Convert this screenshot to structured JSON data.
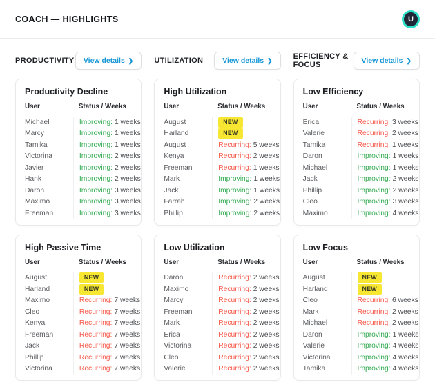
{
  "header": {
    "title": "COACH — HIGHLIGHTS",
    "avatar_initial": "U"
  },
  "labels": {
    "view_details": "View details",
    "chevron": "❯",
    "new_badge": "NEW"
  },
  "colors": {
    "accent_blue": "#1697d6",
    "improving_green": "#34ab53",
    "recurring_red": "#f75849",
    "badge_yellow": "#f7e733",
    "avatar_ring_teal": "#2ee0c9",
    "avatar_bg": "#202736"
  },
  "columns": [
    {
      "label": "PRODUCTIVITY",
      "cards": [
        {
          "title": "Productivity Decline",
          "headers": {
            "user": "User",
            "status": "Status / Weeks"
          },
          "rows": [
            {
              "user": "Michael",
              "status": "Improving",
              "weeks": "1 weeks"
            },
            {
              "user": "Marcy",
              "status": "Improving",
              "weeks": "1 weeks"
            },
            {
              "user": "Tamika",
              "status": "Improving",
              "weeks": "1 weeks"
            },
            {
              "user": "Victorina",
              "status": "Improving",
              "weeks": "2 weeks"
            },
            {
              "user": "Javier",
              "status": "Improving",
              "weeks": "2 weeks"
            },
            {
              "user": "Hank",
              "status": "Improving",
              "weeks": "2 weeks"
            },
            {
              "user": "Daron",
              "status": "Improving",
              "weeks": "3 weeks"
            },
            {
              "user": "Maximo",
              "status": "Improving",
              "weeks": "3 weeks"
            },
            {
              "user": "Freeman",
              "status": "Improving",
              "weeks": "3 weeks"
            }
          ]
        },
        {
          "title": "High Passive Time",
          "headers": {
            "user": "User",
            "status": "Status / Weeks"
          },
          "rows": [
            {
              "user": "August",
              "status": "NEW",
              "weeks": null
            },
            {
              "user": "Harland",
              "status": "NEW",
              "weeks": null
            },
            {
              "user": "Maximo",
              "status": "Recurring",
              "weeks": "7 weeks"
            },
            {
              "user": "Cleo",
              "status": "Recurring",
              "weeks": "7 weeks"
            },
            {
              "user": "Kenya",
              "status": "Recurring",
              "weeks": "7 weeks"
            },
            {
              "user": "Freeman",
              "status": "Recurring",
              "weeks": "7 weeks"
            },
            {
              "user": "Jack",
              "status": "Recurring",
              "weeks": "7 weeks"
            },
            {
              "user": "Phillip",
              "status": "Recurring",
              "weeks": "7 weeks"
            },
            {
              "user": "Victorina",
              "status": "Recurring",
              "weeks": "7 weeks"
            }
          ]
        }
      ]
    },
    {
      "label": "UTILIZATION",
      "cards": [
        {
          "title": "High Utilization",
          "headers": {
            "user": "User",
            "status": "Status / Weeks"
          },
          "rows": [
            {
              "user": "August",
              "status": "NEW",
              "weeks": null
            },
            {
              "user": "Harland",
              "status": "NEW",
              "weeks": null
            },
            {
              "user": "August",
              "status": "Recurring",
              "weeks": "5 weeks"
            },
            {
              "user": "Kenya",
              "status": "Recurring",
              "weeks": "2 weeks"
            },
            {
              "user": "Freeman",
              "status": "Recurring",
              "weeks": "1 weeks"
            },
            {
              "user": "Mark",
              "status": "Improving",
              "weeks": "1 weeks"
            },
            {
              "user": "Jack",
              "status": "Improving",
              "weeks": "1 weeks"
            },
            {
              "user": "Farrah",
              "status": "Improving",
              "weeks": "2 weeks"
            },
            {
              "user": "Phillip",
              "status": "Improving",
              "weeks": "2 weeks"
            }
          ]
        },
        {
          "title": "Low Utilization",
          "headers": {
            "user": "User",
            "status": "Status / Weeks"
          },
          "rows": [
            {
              "user": "Daron",
              "status": "Recurring",
              "weeks": "2 weeks"
            },
            {
              "user": "Maximo",
              "status": "Recurring",
              "weeks": "2 weeks"
            },
            {
              "user": "Marcy",
              "status": "Recurring",
              "weeks": "2 weeks"
            },
            {
              "user": "Freeman",
              "status": "Recurring",
              "weeks": "2 weeks"
            },
            {
              "user": "Mark",
              "status": "Recurring",
              "weeks": "2 weeks"
            },
            {
              "user": "Erica",
              "status": "Recurring",
              "weeks": "2 weeks"
            },
            {
              "user": "Victorina",
              "status": "Recurring",
              "weeks": "2 weeks"
            },
            {
              "user": "Cleo",
              "status": "Recurring",
              "weeks": "2 weeks"
            },
            {
              "user": "Valerie",
              "status": "Recurring",
              "weeks": "2 weeks"
            }
          ]
        }
      ]
    },
    {
      "label": "EFFICIENCY & FOCUS",
      "cards": [
        {
          "title": "Low Efficiency",
          "headers": {
            "user": "User",
            "status": "Status / Weeks"
          },
          "rows": [
            {
              "user": "Erica",
              "status": "Recurring",
              "weeks": "3 weeks"
            },
            {
              "user": "Valerie",
              "status": "Recurring",
              "weeks": "2 weeks"
            },
            {
              "user": "Tamika",
              "status": "Recurring",
              "weeks": "1 weeks"
            },
            {
              "user": "Daron",
              "status": "Improving",
              "weeks": "1 weeks"
            },
            {
              "user": "Michael",
              "status": "Improving",
              "weeks": "1 weeks"
            },
            {
              "user": "Jack",
              "status": "Improving",
              "weeks": "2 weeks"
            },
            {
              "user": "Phillip",
              "status": "Improving",
              "weeks": "2 weeks"
            },
            {
              "user": "Cleo",
              "status": "Improving",
              "weeks": "3 weeks"
            },
            {
              "user": "Maximo",
              "status": "Improving",
              "weeks": "4 weeks"
            }
          ]
        },
        {
          "title": "Low Focus",
          "headers": {
            "user": "User",
            "status": "Status / Weeks"
          },
          "rows": [
            {
              "user": "August",
              "status": "NEW",
              "weeks": null
            },
            {
              "user": "Harland",
              "status": "NEW",
              "weeks": null
            },
            {
              "user": "Cleo",
              "status": "Recurring",
              "weeks": "6 weeks"
            },
            {
              "user": "Mark",
              "status": "Recurring",
              "weeks": "2 weeks"
            },
            {
              "user": "Michael",
              "status": "Recurring",
              "weeks": "2 weeks"
            },
            {
              "user": "Daron",
              "status": "Improving",
              "weeks": "1 weeks"
            },
            {
              "user": "Valerie",
              "status": "Improving",
              "weeks": "4 weeks"
            },
            {
              "user": "Victorina",
              "status": "Improving",
              "weeks": "4 weeks"
            },
            {
              "user": "Tamika",
              "status": "Improving",
              "weeks": "4 weeks"
            }
          ]
        }
      ]
    }
  ]
}
